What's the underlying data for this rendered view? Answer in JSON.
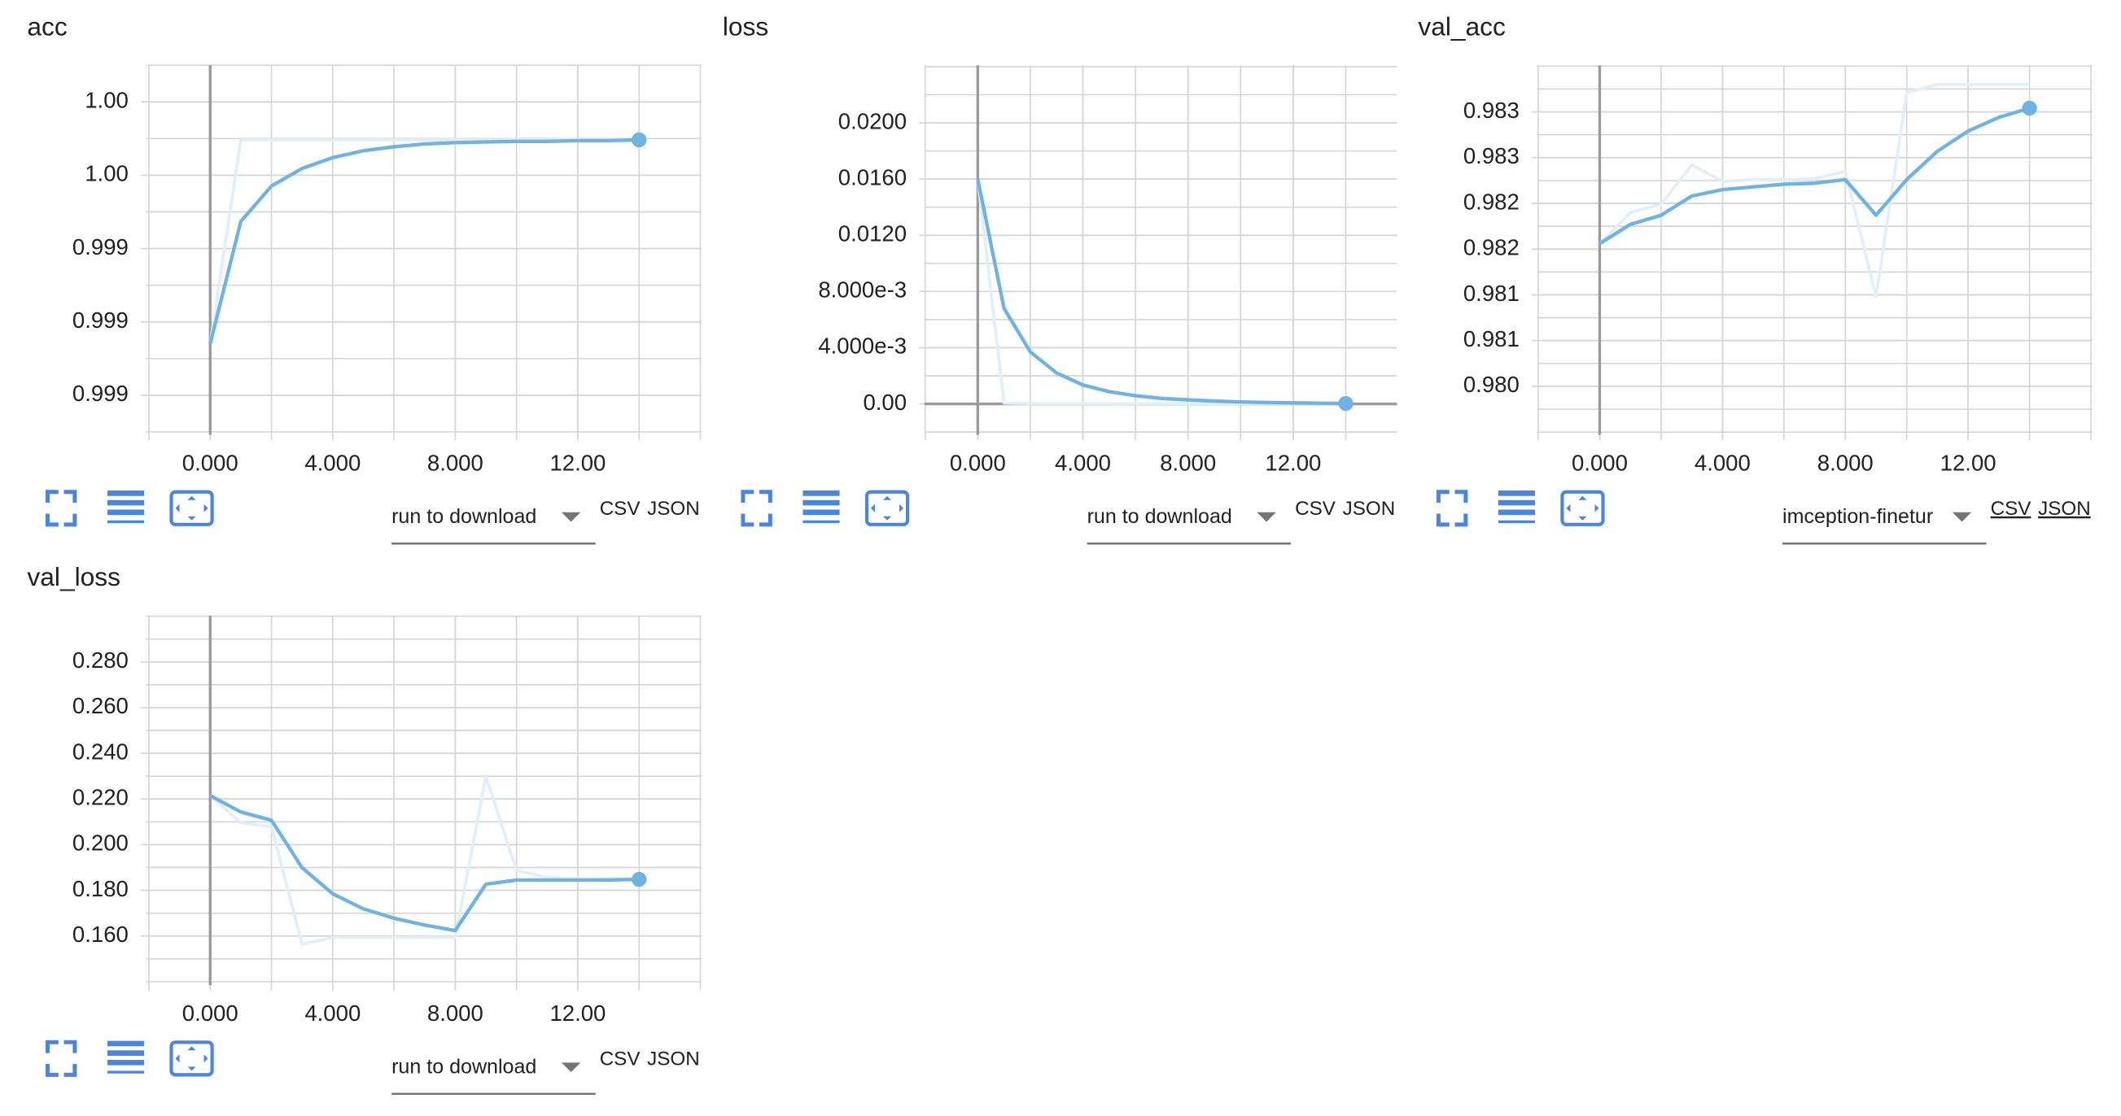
{
  "chart_data": [
    {
      "type": "line",
      "title": "acc",
      "x": [
        0,
        1,
        2,
        3,
        4,
        5,
        6,
        7,
        8,
        9,
        10,
        11,
        12,
        13,
        14
      ],
      "series": [
        {
          "color": "#e2eef9",
          "values": [
            0.99835,
            0.999741,
            0.999741,
            0.999741,
            0.999741,
            0.999741,
            0.999741,
            0.999741,
            0.999741,
            0.999741,
            0.999741,
            0.999741,
            0.999741,
            0.999741,
            0.999741
          ]
        },
        {
          "color": "#6fb3e3",
          "values": [
            0.99835,
            0.999185,
            0.999426,
            0.999546,
            0.99962,
            0.999667,
            0.999694,
            0.999713,
            0.999722,
            0.999727,
            0.999731,
            0.999731,
            0.999736,
            0.999736,
            0.999741
          ]
        }
      ],
      "xlim": [
        -2.09,
        16.04
      ],
      "xticks": [
        {
          "value": 0,
          "label": "0.000"
        },
        {
          "value": 4,
          "label": "4.000"
        },
        {
          "value": 8,
          "label": "8.000"
        },
        {
          "value": 12,
          "label": "12.00"
        }
      ],
      "ylim": [
        0.99773,
        1.00025
      ],
      "yticks": [
        {
          "value": 1.0,
          "label": "1.00"
        },
        {
          "value": 0.9995,
          "label": "1.00"
        },
        {
          "value": 0.999,
          "label": "0.999"
        },
        {
          "value": 0.9985,
          "label": "0.999"
        },
        {
          "value": 0.998,
          "label": "0.999"
        }
      ],
      "grid": true,
      "run_selector": "run to download",
      "run_selected": false,
      "links": [
        "CSV",
        "JSON"
      ]
    },
    {
      "type": "line",
      "title": "loss",
      "x": [
        0,
        1,
        2,
        3,
        4,
        5,
        6,
        7,
        8,
        9,
        10,
        11,
        12,
        13,
        14
      ],
      "series": [
        {
          "color": "#e2eef9",
          "values": [
            0.016,
            5e-05,
            2e-05,
            2e-05,
            2e-05,
            2e-05,
            2e-05,
            2e-05,
            2e-05,
            2e-05,
            2e-05,
            2e-05,
            2e-05,
            2e-05,
            2e-05
          ]
        },
        {
          "color": "#6fb3e3",
          "values": [
            0.016,
            0.0068,
            0.0037,
            0.0022,
            0.00135,
            0.00087,
            0.00058,
            0.00039,
            0.00029,
            0.0002,
            0.00014,
            0.0001,
            7e-05,
            5e-05,
            3e-05
          ]
        }
      ],
      "xlim": [
        -2.03,
        15.95
      ],
      "xticks": [
        {
          "value": 0,
          "label": "0.000"
        },
        {
          "value": 4,
          "label": "4.000"
        },
        {
          "value": 8,
          "label": "8.000"
        },
        {
          "value": 12,
          "label": "12.00"
        }
      ],
      "ylim": [
        -0.0022,
        0.0241
      ],
      "yticks": [
        {
          "value": 0.02,
          "label": "0.0200"
        },
        {
          "value": 0.016,
          "label": "0.0160"
        },
        {
          "value": 0.012,
          "label": "0.0120"
        },
        {
          "value": 0.008,
          "label": "8.000e-3"
        },
        {
          "value": 0.004,
          "label": "4.000e-3"
        },
        {
          "value": 0,
          "label": "0.00"
        }
      ],
      "grid": true,
      "run_selector": "run to download",
      "run_selected": false,
      "links": [
        "CSV",
        "JSON"
      ]
    },
    {
      "type": "line",
      "title": "val_acc",
      "x": [
        0,
        1,
        2,
        3,
        4,
        5,
        6,
        7,
        8,
        9,
        10,
        11,
        12,
        13,
        14
      ],
      "series": [
        {
          "color": "#e2eef9",
          "values": [
            0.98156,
            0.9819,
            0.98199,
            0.98242,
            0.98224,
            0.98226,
            0.98226,
            0.98227,
            0.98235,
            0.98098,
            0.98321,
            0.9833,
            0.9833,
            0.9833,
            0.9833
          ]
        },
        {
          "color": "#6fb3e3",
          "values": [
            0.98156,
            0.98177,
            0.98187,
            0.98208,
            0.98215,
            0.98218,
            0.98221,
            0.98222,
            0.98226,
            0.98187,
            0.98226,
            0.98257,
            0.98279,
            0.98294,
            0.98304
          ]
        }
      ],
      "xlim": [
        -2.04,
        16.05
      ],
      "xticks": [
        {
          "value": 0,
          "label": "0.000"
        },
        {
          "value": 4,
          "label": "4.000"
        },
        {
          "value": 8,
          "label": "8.000"
        },
        {
          "value": 12,
          "label": "12.00"
        }
      ],
      "ylim": [
        0.97947,
        0.98351
      ],
      "yticks": [
        {
          "value": 0.983,
          "label": "0.983"
        },
        {
          "value": 0.9825,
          "label": "0.983"
        },
        {
          "value": 0.982,
          "label": "0.982"
        },
        {
          "value": 0.9815,
          "label": "0.982"
        },
        {
          "value": 0.981,
          "label": "0.981"
        },
        {
          "value": 0.9805,
          "label": "0.981"
        },
        {
          "value": 0.98,
          "label": "0.980"
        }
      ],
      "grid": true,
      "run_selector": "imception-finetur",
      "run_selected": true,
      "links": [
        "CSV",
        "JSON"
      ]
    },
    {
      "type": "line",
      "title": "val_loss",
      "x": [
        0,
        1,
        2,
        3,
        4,
        5,
        6,
        7,
        8,
        9,
        10,
        11,
        12,
        13,
        14
      ],
      "series": [
        {
          "color": "#e2eef9",
          "values": [
            0.2215,
            0.2096,
            0.2078,
            0.1564,
            0.1594,
            0.1594,
            0.1594,
            0.1594,
            0.1594,
            0.2299,
            0.1887,
            0.1857,
            0.1851,
            0.1851,
            0.1851
          ]
        },
        {
          "color": "#6fb3e3",
          "values": [
            0.2215,
            0.2143,
            0.2107,
            0.1899,
            0.1785,
            0.1719,
            0.1678,
            0.1648,
            0.1624,
            0.1827,
            0.1845,
            0.1845,
            0.1845,
            0.1845,
            0.1848
          ]
        }
      ],
      "xlim": [
        -2.09,
        16.04
      ],
      "xticks": [
        {
          "value": 0,
          "label": "0.000"
        },
        {
          "value": 4,
          "label": "4.000"
        },
        {
          "value": 8,
          "label": "8.000"
        },
        {
          "value": 12,
          "label": "12.00"
        }
      ],
      "ylim": [
        0.1385,
        0.3003
      ],
      "yticks": [
        {
          "value": 0.28,
          "label": "0.280"
        },
        {
          "value": 0.26,
          "label": "0.260"
        },
        {
          "value": 0.24,
          "label": "0.240"
        },
        {
          "value": 0.22,
          "label": "0.220"
        },
        {
          "value": 0.2,
          "label": "0.200"
        },
        {
          "value": 0.18,
          "label": "0.180"
        },
        {
          "value": 0.16,
          "label": "0.160"
        }
      ],
      "grid": true,
      "run_selector": "run to download",
      "run_selected": false,
      "links": [
        "CSV",
        "JSON"
      ]
    }
  ]
}
